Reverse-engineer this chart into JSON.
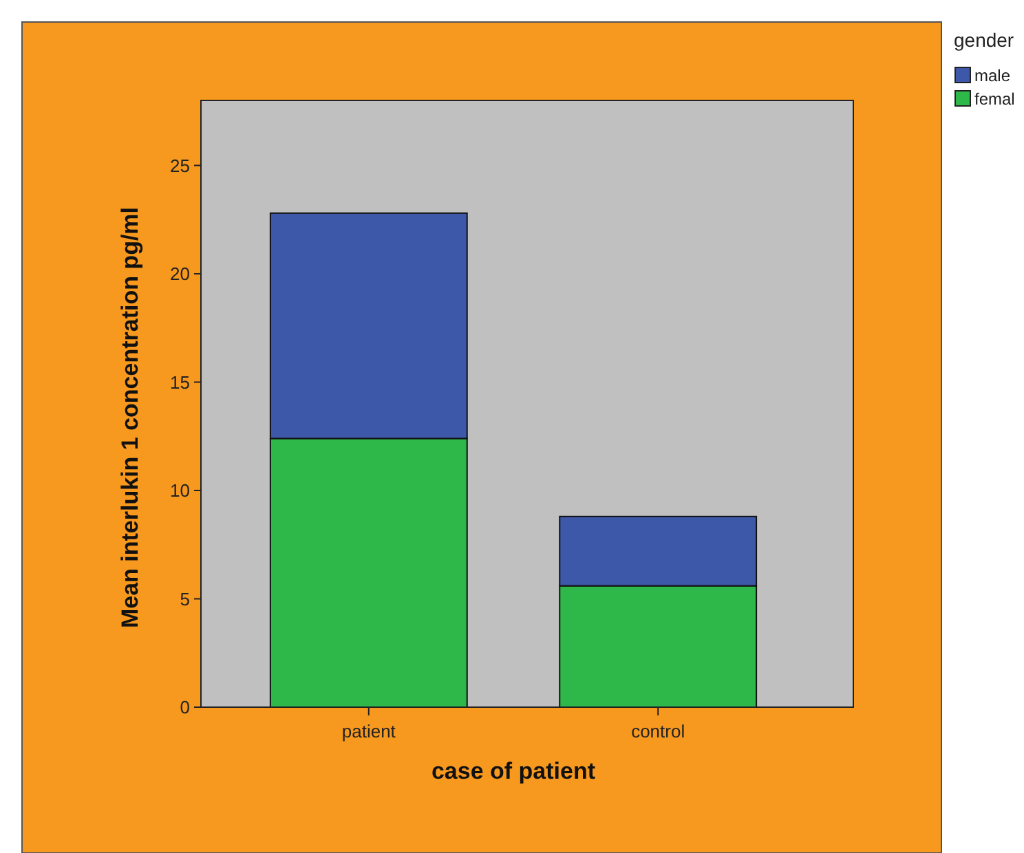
{
  "chart_data": {
    "type": "bar",
    "stacked": true,
    "xlabel": "case of patient",
    "ylabel": "Mean interlukin 1 concentration pg/ml",
    "legend_title": "gender",
    "legend": "top right",
    "categories": [
      "patient",
      "control"
    ],
    "series": [
      {
        "name": "femal",
        "color": "#2eb84a",
        "values": [
          12.4,
          5.6
        ]
      },
      {
        "name": "male",
        "color": "#3d58a8",
        "values": [
          10.4,
          3.2
        ]
      }
    ],
    "ylim": [
      0,
      28
    ],
    "yticks": [
      0,
      5,
      10,
      15,
      20,
      25
    ]
  }
}
